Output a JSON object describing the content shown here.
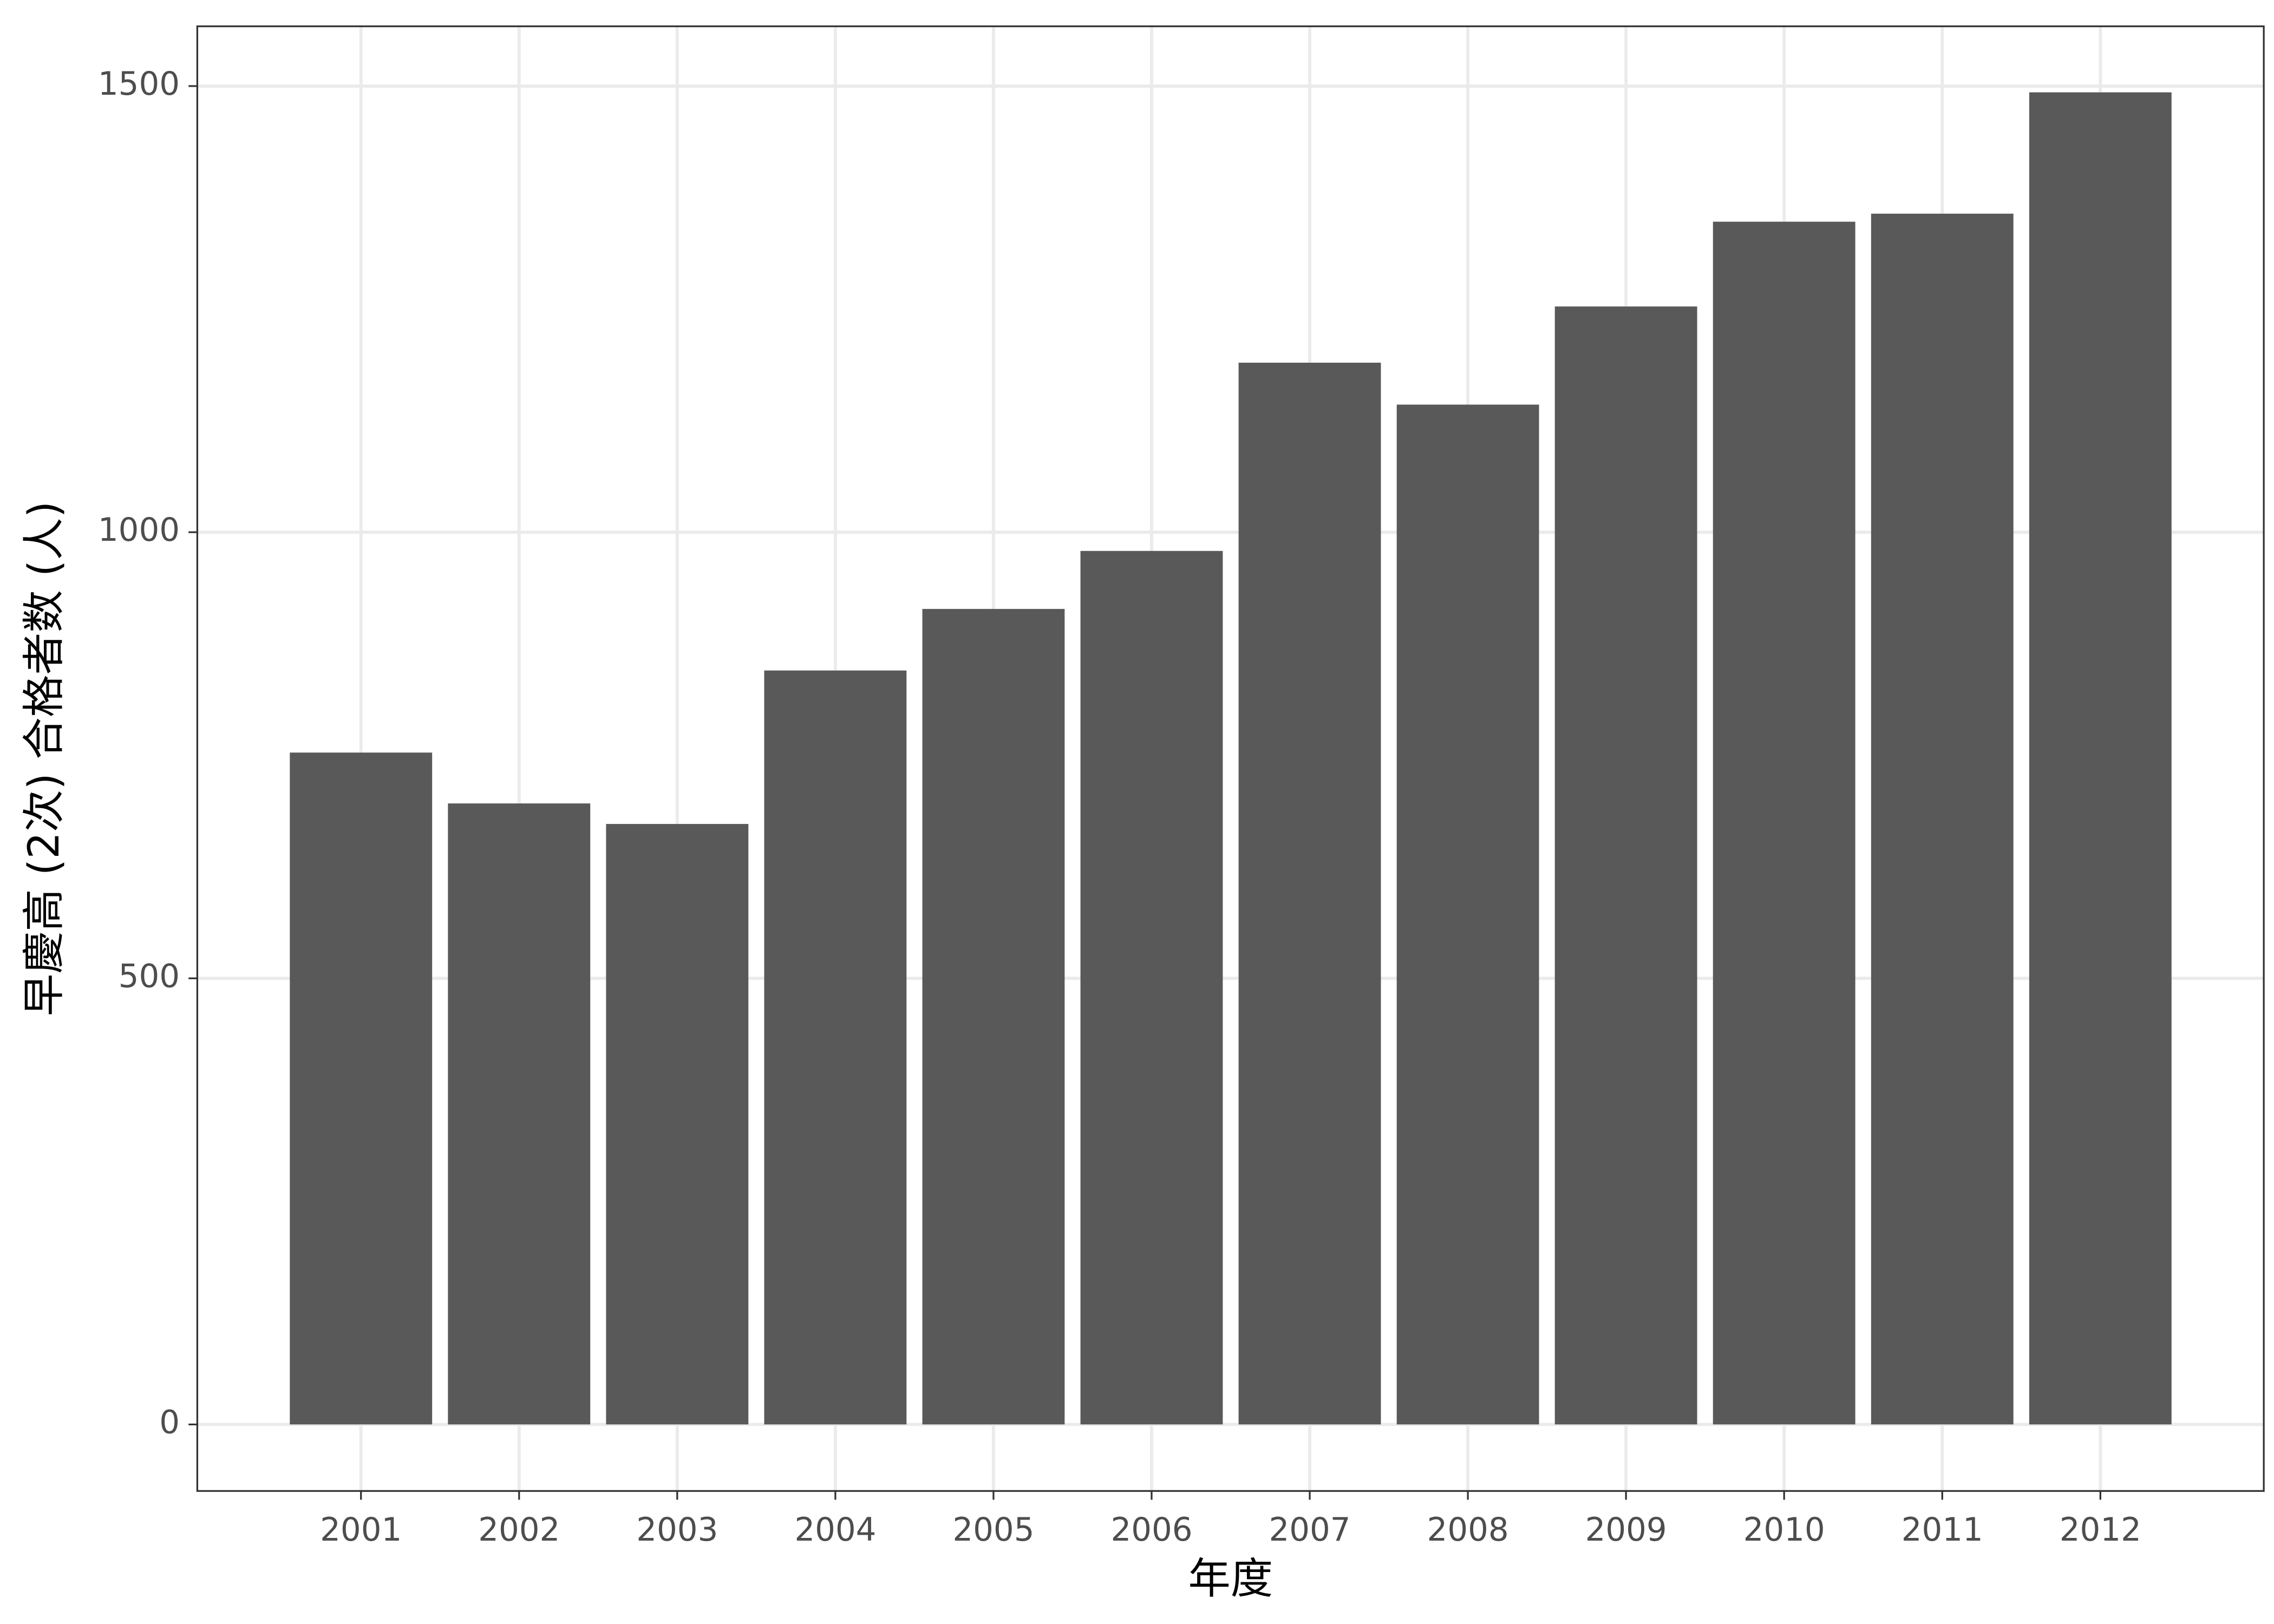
{
  "chart_data": {
    "type": "bar",
    "x_label": "年度",
    "y_label": "早慶高 (2次) 合格者数 (人)",
    "categories": [
      "2001",
      "2002",
      "2003",
      "2004",
      "2005",
      "2006",
      "2007",
      "2008",
      "2009",
      "2010",
      "2011",
      "2012"
    ],
    "values": [
      753,
      696,
      673,
      845,
      914,
      979,
      1190,
      1143,
      1253,
      1348,
      1357,
      1493
    ],
    "color": "#595959",
    "ylim": [
      -74.6,
      1567
    ],
    "yticks": [
      0,
      500,
      1000,
      1500
    ],
    "grid": true
  }
}
